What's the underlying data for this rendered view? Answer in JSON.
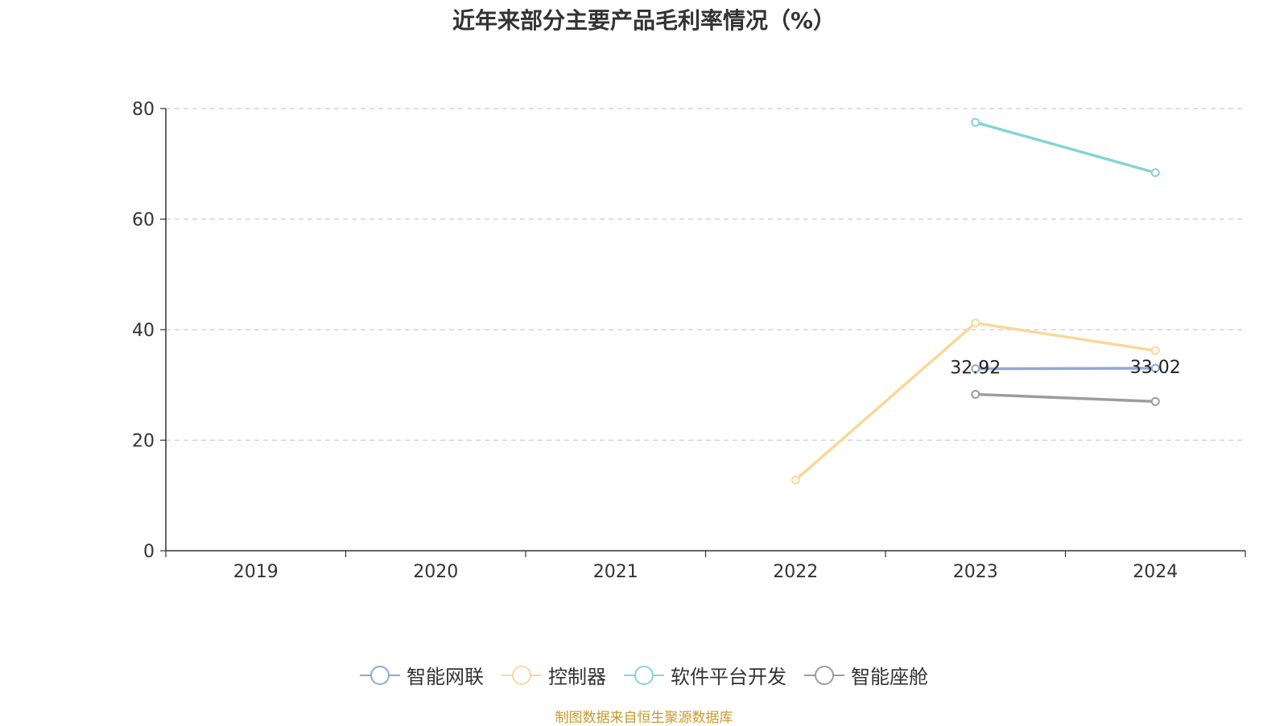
{
  "chart_data": {
    "type": "line",
    "title": "近年来部分主要产品毛利率情况（%）",
    "categories": [
      "2019",
      "2020",
      "2021",
      "2022",
      "2023",
      "2024"
    ],
    "ylim": [
      0,
      80
    ],
    "yticks": [
      0,
      20,
      40,
      60,
      80
    ],
    "grid": true,
    "legend_position": "bottom",
    "series": [
      {
        "name": "智能网联",
        "color": "#8fa9d6",
        "values": [
          null,
          null,
          null,
          null,
          32.92,
          33.02
        ],
        "labels": true
      },
      {
        "name": "控制器",
        "color": "#f9d89a",
        "values": [
          null,
          null,
          null,
          12.8,
          41.2,
          36.2
        ],
        "labels": false
      },
      {
        "name": "软件平台开发",
        "color": "#86d3d8",
        "values": [
          null,
          null,
          null,
          null,
          77.5,
          68.4
        ],
        "labels": false
      },
      {
        "name": "智能座舱",
        "color": "#9d9d9d",
        "values": [
          null,
          null,
          null,
          null,
          28.3,
          27.0
        ],
        "labels": false
      }
    ]
  },
  "source": "制图数据来自恒生聚源数据库"
}
